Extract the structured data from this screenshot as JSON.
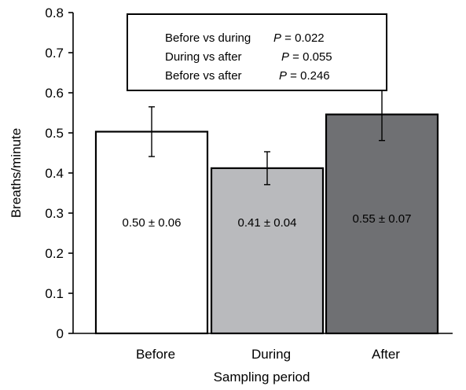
{
  "chart_data": {
    "type": "bar",
    "title": "",
    "xlabel": "Sampling period",
    "ylabel": "Breaths/minute",
    "ylim": [
      0,
      0.8
    ],
    "yticks": [
      "0",
      "0.1",
      "0.2",
      "0.3",
      "0.4",
      "0.5",
      "0.6",
      "0.7",
      "0.8"
    ],
    "ytick_values": [
      0,
      0.1,
      0.2,
      0.3,
      0.4,
      0.5,
      0.6,
      0.7,
      0.8
    ],
    "categories": [
      "Before",
      "During",
      "After"
    ],
    "values": [
      0.503,
      0.412,
      0.546
    ],
    "errors": [
      0.062,
      0.041,
      0.065
    ],
    "bar_labels": [
      "0.50 ± 0.06",
      "0.41 ± 0.04",
      "0.55 ± 0.07"
    ],
    "bar_colors": [
      "#ffffff",
      "#b9babd",
      "#6f7073"
    ],
    "grid": false,
    "annotation": {
      "rows": [
        {
          "text": "Before vs during",
          "p_symbol": "P",
          "p_value": " = 0.022"
        },
        {
          "text": "During vs after",
          "p_symbol": "P",
          "p_value": " = 0.055"
        },
        {
          "text": "Before vs after",
          "p_symbol": "P",
          "p_value": " = 0.246"
        }
      ]
    }
  }
}
